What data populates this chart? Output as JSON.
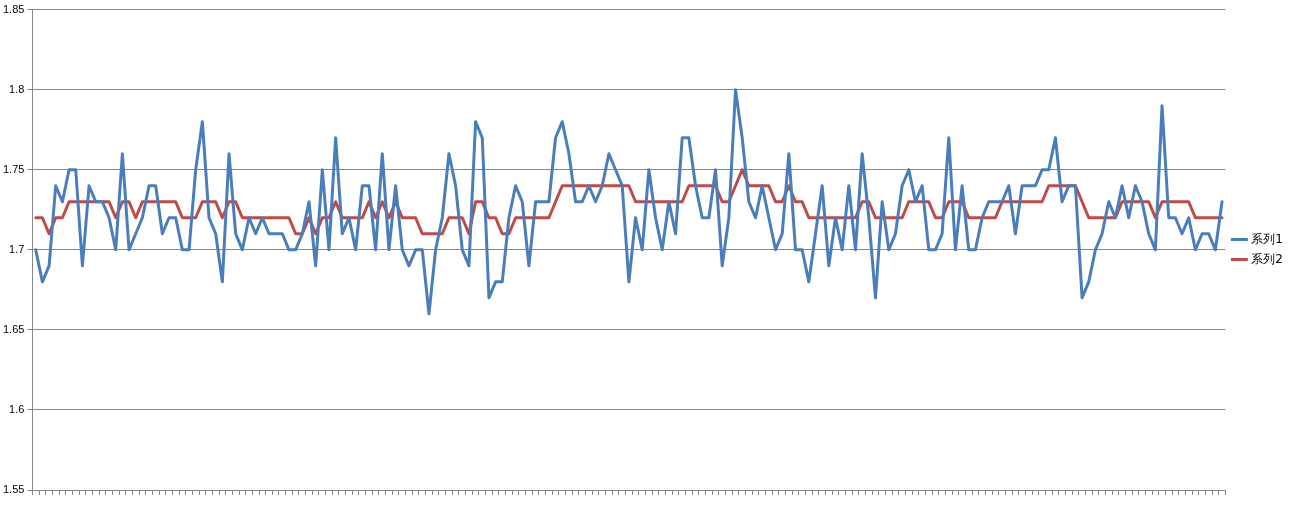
{
  "chart_data": {
    "type": "line",
    "categories": [
      null,
      null,
      null,
      null,
      null,
      null,
      null,
      null,
      null,
      null,
      null,
      null,
      null,
      null,
      null,
      null,
      null,
      null,
      null,
      null,
      null,
      null,
      null,
      null,
      null,
      null,
      null,
      null,
      null,
      null,
      null,
      null,
      null,
      null,
      null,
      null,
      null,
      null,
      null,
      null,
      null,
      null,
      null,
      null,
      null,
      null,
      null,
      null,
      null,
      null,
      null,
      null,
      null,
      null,
      null,
      null,
      null,
      null,
      null,
      null,
      null,
      null,
      null,
      null,
      null,
      null,
      null,
      null,
      null,
      null,
      null,
      null,
      null,
      null,
      null,
      null,
      null,
      null,
      null,
      null,
      null,
      null,
      null,
      null,
      null,
      null,
      null,
      null,
      null,
      null,
      null,
      null,
      null,
      null,
      null,
      null,
      null,
      null,
      null,
      null,
      null,
      null,
      null,
      null,
      null,
      null,
      null,
      null,
      null,
      null,
      null,
      null,
      null,
      null,
      null,
      null,
      null,
      null,
      null,
      null,
      null,
      null,
      null,
      null,
      null,
      null,
      null,
      null,
      null,
      null,
      null,
      null,
      null,
      null,
      null,
      null,
      null,
      null,
      null,
      null,
      null,
      null,
      null,
      null,
      null,
      null,
      null,
      null,
      null,
      null,
      null,
      null,
      null,
      null,
      null,
      null,
      null,
      null,
      null,
      null,
      null,
      null,
      null,
      null,
      null,
      null,
      null,
      null,
      null,
      null,
      null,
      null,
      null,
      null,
      null,
      null,
      null,
      null,
      null
    ],
    "series": [
      {
        "name": "系列1",
        "color": "#4a7ebb",
        "values": [
          1.7,
          1.68,
          1.69,
          1.74,
          1.73,
          1.75,
          1.75,
          1.69,
          1.74,
          1.73,
          1.73,
          1.72,
          1.7,
          1.76,
          1.7,
          1.71,
          1.72,
          1.74,
          1.74,
          1.71,
          1.72,
          1.72,
          1.7,
          1.7,
          1.75,
          1.78,
          1.72,
          1.71,
          1.68,
          1.76,
          1.71,
          1.7,
          1.72,
          1.71,
          1.72,
          1.71,
          1.71,
          1.71,
          1.7,
          1.7,
          1.71,
          1.73,
          1.69,
          1.75,
          1.7,
          1.77,
          1.71,
          1.72,
          1.7,
          1.74,
          1.74,
          1.7,
          1.76,
          1.7,
          1.74,
          1.7,
          1.69,
          1.7,
          1.7,
          1.66,
          1.7,
          1.72,
          1.76,
          1.74,
          1.7,
          1.69,
          1.78,
          1.77,
          1.67,
          1.68,
          1.68,
          1.72,
          1.74,
          1.73,
          1.69,
          1.73,
          1.73,
          1.73,
          1.77,
          1.78,
          1.76,
          1.73,
          1.73,
          1.74,
          1.73,
          1.74,
          1.76,
          1.75,
          1.74,
          1.68,
          1.72,
          1.7,
          1.75,
          1.72,
          1.7,
          1.73,
          1.71,
          1.77,
          1.77,
          1.74,
          1.72,
          1.72,
          1.75,
          1.69,
          1.72,
          1.8,
          1.77,
          1.73,
          1.72,
          1.74,
          1.72,
          1.7,
          1.71,
          1.76,
          1.7,
          1.7,
          1.68,
          1.71,
          1.74,
          1.69,
          1.72,
          1.7,
          1.74,
          1.7,
          1.76,
          1.72,
          1.67,
          1.73,
          1.7,
          1.71,
          1.74,
          1.75,
          1.73,
          1.74,
          1.7,
          1.7,
          1.71,
          1.77,
          1.7,
          1.74,
          1.7,
          1.7,
          1.72,
          1.73,
          1.73,
          1.73,
          1.74,
          1.71,
          1.74,
          1.74,
          1.74,
          1.75,
          1.75,
          1.77,
          1.73,
          1.74,
          1.74,
          1.67,
          1.68,
          1.7,
          1.71,
          1.73,
          1.72,
          1.74,
          1.72,
          1.74,
          1.73,
          1.71,
          1.7,
          1.79,
          1.72,
          1.72,
          1.71,
          1.72,
          1.7,
          1.71,
          1.71,
          1.7,
          1.73
        ]
      },
      {
        "name": "系列2",
        "color": "#be4b48",
        "values": [
          1.72,
          1.72,
          1.71,
          1.72,
          1.72,
          1.73,
          1.73,
          1.73,
          1.73,
          1.73,
          1.73,
          1.73,
          1.72,
          1.73,
          1.73,
          1.72,
          1.73,
          1.73,
          1.73,
          1.73,
          1.73,
          1.73,
          1.72,
          1.72,
          1.72,
          1.73,
          1.73,
          1.73,
          1.72,
          1.73,
          1.73,
          1.72,
          1.72,
          1.72,
          1.72,
          1.72,
          1.72,
          1.72,
          1.72,
          1.71,
          1.71,
          1.72,
          1.71,
          1.72,
          1.72,
          1.73,
          1.72,
          1.72,
          1.72,
          1.72,
          1.73,
          1.72,
          1.73,
          1.72,
          1.73,
          1.72,
          1.72,
          1.72,
          1.71,
          1.71,
          1.71,
          1.71,
          1.72,
          1.72,
          1.72,
          1.71,
          1.73,
          1.73,
          1.72,
          1.72,
          1.71,
          1.71,
          1.72,
          1.72,
          1.72,
          1.72,
          1.72,
          1.72,
          1.73,
          1.74,
          1.74,
          1.74,
          1.74,
          1.74,
          1.74,
          1.74,
          1.74,
          1.74,
          1.74,
          1.74,
          1.73,
          1.73,
          1.73,
          1.73,
          1.73,
          1.73,
          1.73,
          1.73,
          1.74,
          1.74,
          1.74,
          1.74,
          1.74,
          1.73,
          1.73,
          1.74,
          1.75,
          1.74,
          1.74,
          1.74,
          1.74,
          1.73,
          1.73,
          1.74,
          1.73,
          1.73,
          1.72,
          1.72,
          1.72,
          1.72,
          1.72,
          1.72,
          1.72,
          1.72,
          1.73,
          1.73,
          1.72,
          1.72,
          1.72,
          1.72,
          1.72,
          1.73,
          1.73,
          1.73,
          1.73,
          1.72,
          1.72,
          1.73,
          1.73,
          1.73,
          1.72,
          1.72,
          1.72,
          1.72,
          1.72,
          1.73,
          1.73,
          1.73,
          1.73,
          1.73,
          1.73,
          1.73,
          1.74,
          1.74,
          1.74,
          1.74,
          1.74,
          1.73,
          1.72,
          1.72,
          1.72,
          1.72,
          1.72,
          1.73,
          1.73,
          1.73,
          1.73,
          1.73,
          1.72,
          1.73,
          1.73,
          1.73,
          1.73,
          1.73,
          1.72,
          1.72,
          1.72,
          1.72,
          1.72
        ]
      }
    ],
    "ylim": [
      1.55,
      1.85
    ],
    "yticks": [
      1.55,
      1.6,
      1.65,
      1.7,
      1.75,
      1.8,
      1.85
    ],
    "grid": "y",
    "legend": "right",
    "marker": "none",
    "line_style": "solid",
    "tick_labels": "y"
  }
}
